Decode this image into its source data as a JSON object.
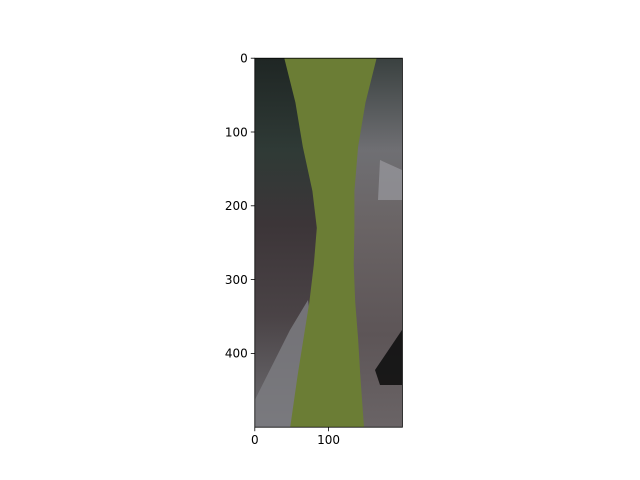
{
  "chart_data": {
    "type": "image",
    "title": "",
    "xlabel": "",
    "ylabel": "",
    "image_extent": {
      "x": [
        0,
        200
      ],
      "y": [
        0,
        500
      ]
    },
    "xlim": [
      0,
      200
    ],
    "ylim": [
      500,
      0
    ],
    "y_inverted": true,
    "x_ticks": [
      0,
      100
    ],
    "y_ticks": [
      0,
      100,
      200,
      300,
      400
    ],
    "grid": false,
    "legend": "none",
    "colors": {
      "road_mask": "#6b7d35",
      "dark_foliage": "#1f2624",
      "gray_blur": "#6f6f73",
      "brown_gray": "#5d5557",
      "light_gray": "#9a9aa0",
      "axis_frame": "#000000"
    },
    "mask_region": {
      "description_values": "left and right boundary x-values (data units) of the green mask at given y-values",
      "y": [
        0,
        60,
        120,
        180,
        230,
        280,
        330,
        380,
        430,
        500
      ],
      "left": [
        40,
        55,
        65,
        78,
        84,
        80,
        74,
        66,
        58,
        48
      ],
      "right": [
        165,
        150,
        140,
        135,
        135,
        134,
        136,
        140,
        143,
        148
      ]
    }
  }
}
